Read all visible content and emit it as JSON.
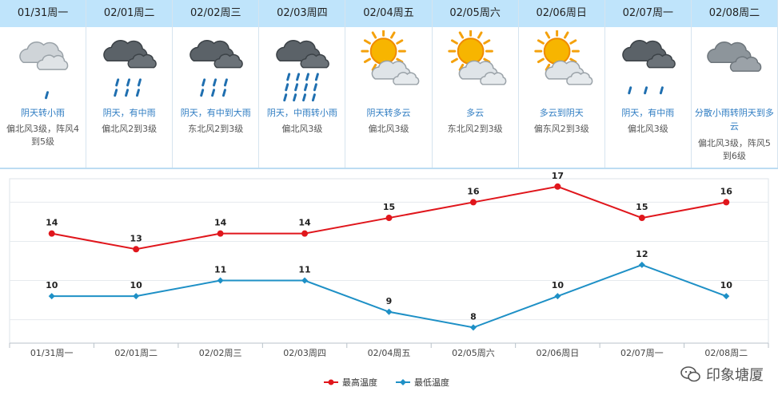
{
  "days": [
    {
      "date": "01/31周一",
      "cond": "阴天转小雨",
      "wind": "偏北风3级，阵风4到5级",
      "icon": "cloud-light-rain-icon"
    },
    {
      "date": "02/01周二",
      "cond": "阴天，有中雨",
      "wind": "偏北风2到3级",
      "icon": "dark-cloud-moderate-rain-icon"
    },
    {
      "date": "02/02周三",
      "cond": "阴天，有中到大雨",
      "wind": "东北风2到3级",
      "icon": "dark-cloud-moderate-rain-icon"
    },
    {
      "date": "02/03周四",
      "cond": "阴天，中雨转小雨",
      "wind": "偏北风3级",
      "icon": "dark-cloud-heavy-rain-icon"
    },
    {
      "date": "02/04周五",
      "cond": "阴天转多云",
      "wind": "偏北风3级",
      "icon": "sun-cloud-icon"
    },
    {
      "date": "02/05周六",
      "cond": "多云",
      "wind": "东北风2到3级",
      "icon": "sun-cloud-icon"
    },
    {
      "date": "02/06周日",
      "cond": "多云到阴天",
      "wind": "偏东风2到3级",
      "icon": "sun-cloud-icon"
    },
    {
      "date": "02/07周一",
      "cond": "阴天，有中雨",
      "wind": "偏北风3级",
      "icon": "dark-cloud-light-rain-icon"
    },
    {
      "date": "02/08周二",
      "cond": "分散小雨转阴天到多云",
      "wind": "偏北风3级，阵风5到6级",
      "icon": "gray-cloud-icon"
    }
  ],
  "chart_data": {
    "type": "line",
    "categories": [
      "01/31周一",
      "02/01周二",
      "02/02周三",
      "02/03周四",
      "02/04周五",
      "02/05周六",
      "02/06周日",
      "02/07周一",
      "02/08周二"
    ],
    "series": [
      {
        "name": "最高温度",
        "values": [
          14,
          13,
          14,
          14,
          15,
          16,
          17,
          15,
          16
        ],
        "color": "#e0161c"
      },
      {
        "name": "最低温度",
        "values": [
          10,
          10,
          11,
          11,
          9,
          8,
          10,
          12,
          10
        ],
        "color": "#1e90c6"
      }
    ],
    "ylim": [
      7,
      17.5
    ],
    "grid": true,
    "legend": "bottom-center"
  },
  "watermark": "印象塘厦"
}
